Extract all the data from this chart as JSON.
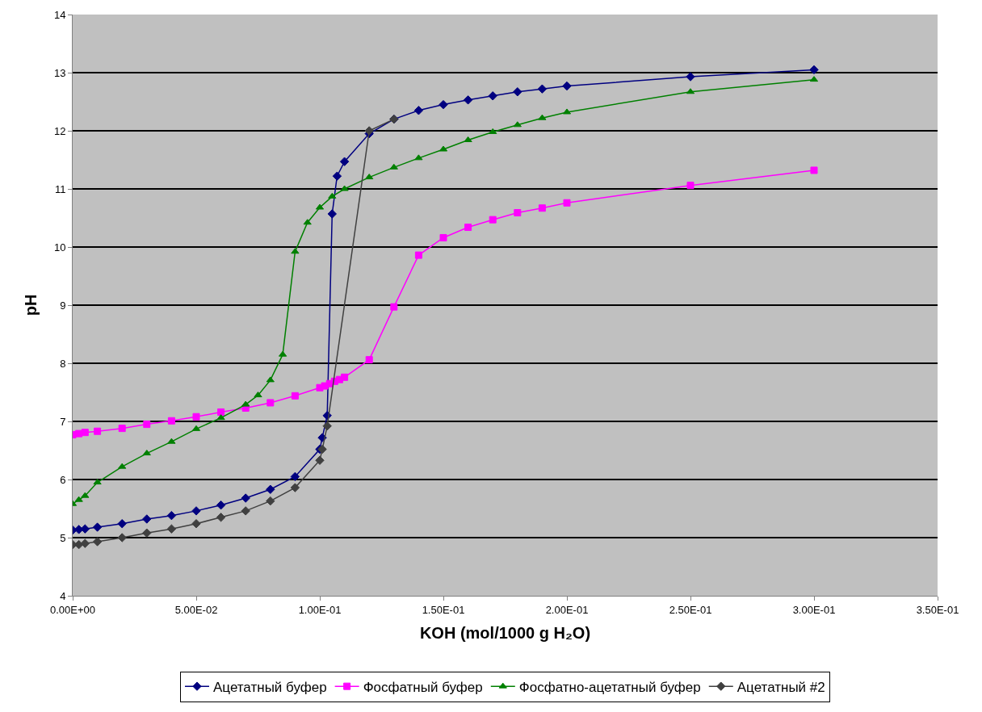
{
  "chart_data": {
    "type": "line",
    "xlabel": "KOH (mol/1000 g H₂O)",
    "ylabel": "pH",
    "xlim": [
      0,
      0.35
    ],
    "ylim": [
      4,
      14
    ],
    "xticks": [
      {
        "value": 0,
        "label": "0.00E+00"
      },
      {
        "value": 0.05,
        "label": "5.00E-02"
      },
      {
        "value": 0.1,
        "label": "1.00E-01"
      },
      {
        "value": 0.15,
        "label": "1.50E-01"
      },
      {
        "value": 0.2,
        "label": "2.00E-01"
      },
      {
        "value": 0.25,
        "label": "2.50E-01"
      },
      {
        "value": 0.3,
        "label": "3.00E-01"
      },
      {
        "value": 0.35,
        "label": "3.50E-01"
      }
    ],
    "yticks": [
      4,
      5,
      6,
      7,
      8,
      9,
      10,
      11,
      12,
      13,
      14
    ],
    "grid": "y",
    "legend": "bottom",
    "line_style": "solid",
    "series": [
      {
        "name": "Ацетатный буфер",
        "color": "#000080",
        "marker": "diamond",
        "x": [
          0,
          0.0025,
          0.005,
          0.01,
          0.02,
          0.03,
          0.04,
          0.05,
          0.06,
          0.07,
          0.08,
          0.09,
          0.1,
          0.101,
          0.103,
          0.105,
          0.107,
          0.11,
          0.12,
          0.13,
          0.14,
          0.15,
          0.16,
          0.17,
          0.18,
          0.19,
          0.2,
          0.25,
          0.3
        ],
        "values": [
          5.13,
          5.14,
          5.15,
          5.18,
          5.24,
          5.32,
          5.38,
          5.46,
          5.56,
          5.68,
          5.83,
          6.05,
          6.52,
          6.72,
          7.1,
          10.57,
          11.22,
          11.47,
          11.95,
          12.2,
          12.35,
          12.45,
          12.53,
          12.6,
          12.67,
          12.72,
          12.77,
          12.93,
          13.05
        ]
      },
      {
        "name": "Фосфатный буфер",
        "color": "#ff00ff",
        "marker": "square",
        "x": [
          0,
          0.0025,
          0.005,
          0.01,
          0.02,
          0.03,
          0.04,
          0.05,
          0.06,
          0.07,
          0.08,
          0.09,
          0.1,
          0.102,
          0.104,
          0.106,
          0.108,
          0.11,
          0.12,
          0.13,
          0.14,
          0.15,
          0.16,
          0.17,
          0.18,
          0.19,
          0.2,
          0.25,
          0.3
        ],
        "values": [
          6.77,
          6.79,
          6.81,
          6.83,
          6.88,
          6.95,
          7.01,
          7.08,
          7.16,
          7.23,
          7.32,
          7.44,
          7.58,
          7.61,
          7.65,
          7.69,
          7.72,
          7.76,
          8.06,
          8.97,
          9.86,
          10.16,
          10.34,
          10.47,
          10.59,
          10.67,
          10.76,
          11.06,
          11.32
        ]
      },
      {
        "name": "Фосфатно-ацетатный буфер",
        "color": "#008000",
        "marker": "triangle",
        "x": [
          0,
          0.0025,
          0.005,
          0.01,
          0.02,
          0.03,
          0.04,
          0.05,
          0.06,
          0.07,
          0.075,
          0.08,
          0.085,
          0.09,
          0.095,
          0.1,
          0.105,
          0.11,
          0.12,
          0.13,
          0.14,
          0.15,
          0.16,
          0.17,
          0.18,
          0.19,
          0.2,
          0.25,
          0.3
        ],
        "values": [
          5.58,
          5.65,
          5.72,
          5.95,
          6.22,
          6.45,
          6.65,
          6.87,
          7.06,
          7.29,
          7.45,
          7.71,
          8.15,
          9.92,
          10.42,
          10.68,
          10.87,
          11.0,
          11.2,
          11.37,
          11.53,
          11.68,
          11.84,
          11.98,
          12.1,
          12.22,
          12.32,
          12.67,
          12.88
        ]
      },
      {
        "name": "Ацетатный #2",
        "color": "#404040",
        "marker": "diamond",
        "x": [
          0,
          0.0025,
          0.005,
          0.01,
          0.02,
          0.03,
          0.04,
          0.05,
          0.06,
          0.07,
          0.08,
          0.09,
          0.1,
          0.101,
          0.103,
          0.12,
          0.13
        ],
        "values": [
          4.88,
          4.88,
          4.9,
          4.93,
          5.0,
          5.08,
          5.15,
          5.24,
          5.35,
          5.46,
          5.63,
          5.86,
          6.33,
          6.52,
          6.92,
          12.0,
          12.2
        ]
      }
    ]
  }
}
